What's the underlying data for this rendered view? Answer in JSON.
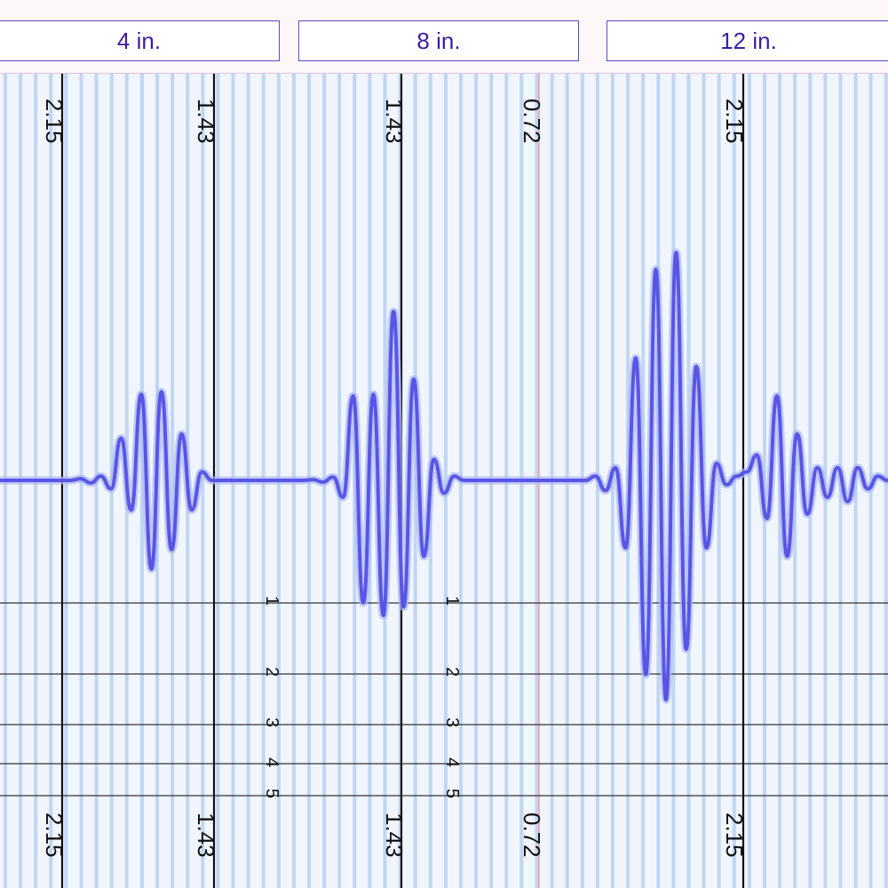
{
  "tabs": [
    {
      "label": "4 in."
    },
    {
      "label": "8 in."
    },
    {
      "label": "12 in."
    }
  ],
  "colors": {
    "trace": "#5a55e6",
    "trace_glow": "#a9b6f2",
    "stripe": "#b9d0f1",
    "panel_background": "#f1f6fe",
    "panel_border": "#111111",
    "marker_line": "#f29aa9",
    "tab_border": "#5b4ac9",
    "tab_text": "#3a1f9e"
  },
  "chart_data": {
    "type": "line",
    "title": "",
    "xlabel": "",
    "ylabel": "",
    "sections": [
      {
        "name": "4 in.",
        "scale_top": "2.15",
        "scale_bottom": "2.15"
      },
      {
        "name": "4 in.",
        "scale_top": "1.43",
        "scale_bottom": "1.43"
      },
      {
        "name": "8 in.",
        "scale_top": "1.43",
        "scale_bottom": "1.43"
      },
      {
        "name": "8 in.",
        "scale_top": "0.72",
        "scale_bottom": "0.72"
      },
      {
        "name": "12 in.",
        "scale_top": "2.15",
        "scale_bottom": "2.15"
      }
    ],
    "depth_lines": [
      "1",
      "2",
      "3",
      "4",
      "5"
    ],
    "series": [
      {
        "values": [
          0,
          0,
          0,
          0,
          0,
          0,
          0,
          0,
          0.02,
          -0.03,
          0.05,
          -0.1,
          0.5,
          -0.35,
          1.02,
          -1.05,
          1.05,
          -0.82,
          0.55,
          -0.35,
          0.1,
          0,
          0,
          0,
          0,
          0,
          0,
          0,
          0,
          0,
          0,
          0.01,
          -0.02,
          0.04,
          -0.2,
          1.0,
          -1.45,
          1.02,
          -1.6,
          2.0,
          -1.5,
          1.2,
          -0.9,
          0.25,
          -0.15,
          0.05,
          0,
          0,
          0,
          0,
          0,
          0,
          0,
          0,
          0,
          0,
          0,
          0,
          0,
          0.05,
          -0.12,
          0.15,
          -0.8,
          1.45,
          -2.3,
          2.5,
          -2.6,
          2.7,
          -2.0,
          1.35,
          -0.8,
          0.2,
          -0.05,
          0.05,
          0.1,
          0.3,
          -0.45,
          1.0,
          -0.9,
          0.55,
          -0.4,
          0.15,
          -0.2,
          0.15,
          -0.25,
          0.15,
          -0.1,
          0.05,
          0
        ]
      }
    ]
  }
}
